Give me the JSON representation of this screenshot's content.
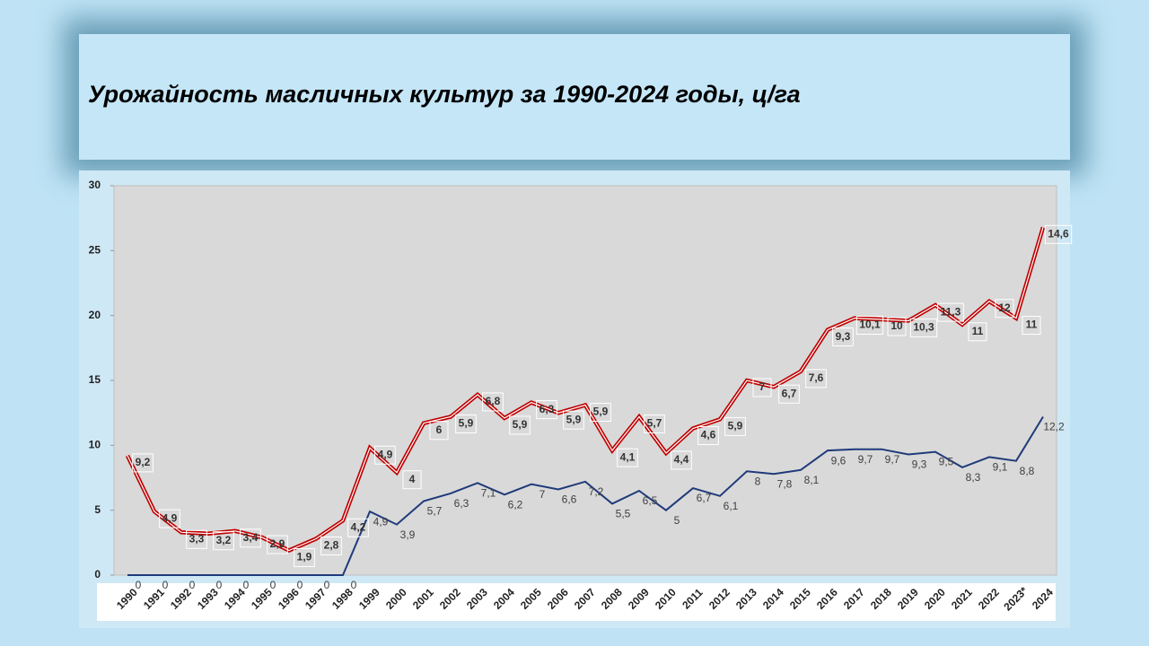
{
  "chart_data": {
    "type": "line",
    "stacked": true,
    "title": "Урожайность масличных  культур за 1990-2024 годы, ц/га",
    "categories": [
      "1990",
      "1991",
      "1992",
      "1993",
      "1994",
      "1995",
      "1996",
      "1997",
      "1998",
      "1999",
      "2000",
      "2001",
      "2002",
      "2003",
      "2004",
      "2005",
      "2006",
      "2007",
      "2008",
      "2009",
      "2010",
      "2011",
      "2012",
      "2013",
      "2014",
      "2015",
      "2016",
      "2017",
      "2018",
      "2019",
      "2020",
      "2021",
      "2022",
      "2023*",
      "2024"
    ],
    "series": [
      {
        "color": "#1f3a7a",
        "values": [
          0,
          0,
          0,
          0,
          0,
          0,
          0,
          0,
          0,
          4.9,
          3.9,
          5.7,
          6.3,
          7.1,
          6.2,
          7,
          6.6,
          7.2,
          5.5,
          6.5,
          5,
          6.7,
          6.1,
          8,
          7.8,
          8.1,
          9.6,
          9.7,
          9.7,
          9.3,
          9.5,
          8.3,
          9.1,
          8.8,
          12.2
        ],
        "value_labels": [
          "0",
          "0",
          "0",
          "0",
          "0",
          "0",
          "0",
          "0",
          "0",
          "4,9",
          "3,9",
          "5,7",
          "6,3",
          "7,1",
          "6,2",
          "7",
          "6,6",
          "7,2",
          "5,5",
          "6,5",
          "5",
          "6,7",
          "6,1",
          "8",
          "7,8",
          "8,1",
          "9,6",
          "9,7",
          "9,7",
          "9,3",
          "9,5",
          "8,3",
          "9,1",
          "8,8",
          "12,2"
        ]
      },
      {
        "color": "#c00000",
        "values": [
          9.2,
          4.9,
          3.3,
          3.2,
          3.4,
          2.9,
          1.9,
          2.8,
          4.2,
          4.9,
          4,
          6,
          5.9,
          6.8,
          5.9,
          6.3,
          5.9,
          5.9,
          4.1,
          5.7,
          4.4,
          4.6,
          5.9,
          7,
          6.7,
          7.6,
          9.3,
          10.1,
          10,
          10.3,
          11.3,
          11,
          12,
          11,
          14.6
        ],
        "value_labels": [
          "9,2",
          "4,9",
          "3,3",
          "3,2",
          "3,4",
          "2,9",
          "1,9",
          "2,8",
          "4,2",
          "4,9",
          "4",
          "6",
          "5,9",
          "6,8",
          "5,9",
          "6,3",
          "5,9",
          "5,9",
          "4,1",
          "5,7",
          "4,4",
          "4,6",
          "5,9",
          "7",
          "6,7",
          "7,6",
          "9,3",
          "10,1",
          "10",
          "10,3",
          "11,3",
          "11",
          "12",
          "11",
          "14,6"
        ]
      }
    ],
    "ylim": [
      0,
      30
    ],
    "yticks": [
      0,
      5,
      10,
      15,
      20,
      25,
      30
    ],
    "grid": false
  }
}
